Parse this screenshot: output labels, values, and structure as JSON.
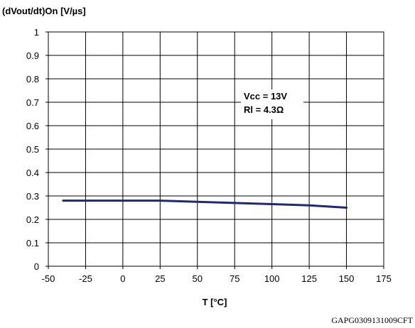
{
  "chart_data": {
    "type": "line",
    "ylabel": "(dVout/dt)On [V/µs]",
    "xlabel": "T [°C]",
    "xlim": [
      -50,
      175
    ],
    "ylim": [
      0,
      1
    ],
    "x_ticks": [
      "-50",
      "-25",
      "0",
      "25",
      "50",
      "75",
      "100",
      "125",
      "150",
      "175"
    ],
    "y_ticks": [
      "0",
      "0.1",
      "0.2",
      "0.3",
      "0.4",
      "0.5",
      "0.6",
      "0.7",
      "0.8",
      "0.9",
      "1"
    ],
    "grid": true,
    "series": [
      {
        "color": "#1f2a6b",
        "x": [
          -40,
          0,
          25,
          50,
          75,
          100,
          125,
          150
        ],
        "y": [
          0.28,
          0.28,
          0.28,
          0.275,
          0.27,
          0.265,
          0.26,
          0.25
        ]
      }
    ],
    "annotations": [
      "Vcc = 13V",
      "Rl = 4.3Ω"
    ],
    "figure_code": "GAPG0309131009CFT"
  }
}
